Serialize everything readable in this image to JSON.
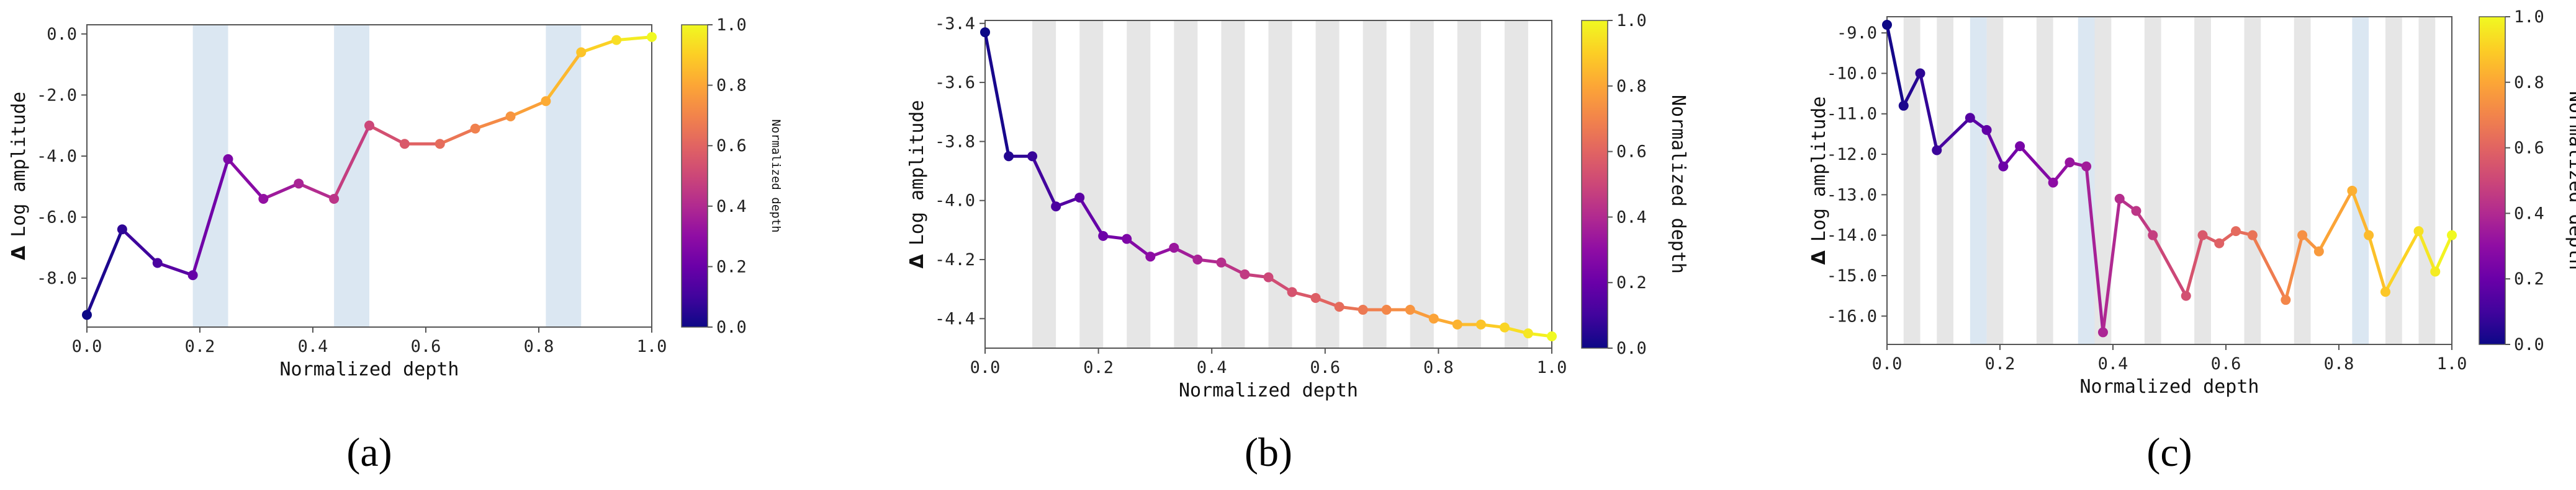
{
  "colors": {
    "blue_band": "#dbe7f2",
    "gray_band": "#e6e6e6",
    "axis": "#555555",
    "text": "#222222"
  },
  "chart_data": [
    {
      "type": "line",
      "panel_label": "(a)",
      "xlabel": "Normalized depth",
      "ylabel_symbol": "Δ",
      "ylabel": "Log amplitude",
      "xlim": [
        0.0,
        1.0
      ],
      "ylim": [
        -9.6,
        0.3
      ],
      "xticks": [
        0.0,
        0.2,
        0.4,
        0.6,
        0.8,
        1.0
      ],
      "xtick_labels": [
        "0.0",
        "0.2",
        "0.4",
        "0.6",
        "0.8",
        "1.0"
      ],
      "yticks": [
        -8.0,
        -6.0,
        -4.0,
        -2.0,
        0.0
      ],
      "ytick_labels": [
        "-8.0",
        "-6.0",
        "-4.0",
        "-2.0",
        "0.0"
      ],
      "bands_blue": [
        [
          0.1875,
          0.25
        ],
        [
          0.4375,
          0.5
        ],
        [
          0.8125,
          0.875
        ]
      ],
      "bands_gray": [],
      "colorbar": {
        "label": "Normalized depth",
        "ticks": [
          "0.0",
          "0.2",
          "0.4",
          "0.6",
          "0.8",
          "1.0"
        ],
        "label_size": "small"
      },
      "x": [
        0.0,
        0.0625,
        0.125,
        0.1875,
        0.25,
        0.3125,
        0.375,
        0.4375,
        0.5,
        0.5625,
        0.625,
        0.6875,
        0.75,
        0.8125,
        0.875,
        0.9375,
        1.0
      ],
      "y": [
        -9.2,
        -6.4,
        -7.5,
        -7.9,
        -4.1,
        -5.4,
        -4.9,
        -5.4,
        -3.0,
        -3.6,
        -3.6,
        -3.1,
        -2.7,
        -2.2,
        -0.6,
        -0.2,
        -0.1
      ]
    },
    {
      "type": "line",
      "panel_label": "(b)",
      "xlabel": "Normalized depth",
      "ylabel_symbol": "Δ",
      "ylabel": "Log amplitude",
      "xlim": [
        0.0,
        1.0
      ],
      "ylim": [
        -4.5,
        -3.39
      ],
      "xticks": [
        0.0,
        0.2,
        0.4,
        0.6,
        0.8,
        1.0
      ],
      "xtick_labels": [
        "0.0",
        "0.2",
        "0.4",
        "0.6",
        "0.8",
        "1.0"
      ],
      "yticks": [
        -4.4,
        -4.2,
        -4.0,
        -3.8,
        -3.6,
        -3.4
      ],
      "ytick_labels": [
        "-4.4",
        "-4.2",
        "-4.0",
        "-3.8",
        "-3.6",
        "-3.4"
      ],
      "bands_blue": [],
      "bands_gray": [
        [
          0.0833,
          0.125
        ],
        [
          0.1667,
          0.2083
        ],
        [
          0.25,
          0.2917
        ],
        [
          0.3333,
          0.375
        ],
        [
          0.4167,
          0.4583
        ],
        [
          0.5,
          0.5417
        ],
        [
          0.5833,
          0.625
        ],
        [
          0.6667,
          0.7083
        ],
        [
          0.75,
          0.7917
        ],
        [
          0.8333,
          0.875
        ],
        [
          0.9167,
          0.9583
        ]
      ],
      "colorbar": {
        "label": "Normalized depth",
        "ticks": [
          "0.0",
          "0.2",
          "0.4",
          "0.6",
          "0.8",
          "1.0"
        ],
        "label_size": "normal"
      },
      "x": [
        0.0,
        0.0417,
        0.0833,
        0.125,
        0.1667,
        0.2083,
        0.25,
        0.2917,
        0.3333,
        0.375,
        0.4167,
        0.4583,
        0.5,
        0.5417,
        0.5833,
        0.625,
        0.6667,
        0.7083,
        0.75,
        0.7917,
        0.8333,
        0.875,
        0.9167,
        0.9583,
        1.0
      ],
      "y": [
        -3.43,
        -3.85,
        -3.85,
        -4.02,
        -3.99,
        -4.12,
        -4.13,
        -4.19,
        -4.16,
        -4.2,
        -4.21,
        -4.25,
        -4.26,
        -4.31,
        -4.33,
        -4.36,
        -4.37,
        -4.37,
        -4.37,
        -4.4,
        -4.42,
        -4.42,
        -4.43,
        -4.45,
        -4.46
      ]
    },
    {
      "type": "line",
      "panel_label": "(c)",
      "xlabel": "Normalized depth",
      "ylabel_symbol": "Δ",
      "ylabel": "Log amplitude",
      "xlim": [
        0.0,
        1.0
      ],
      "ylim": [
        -16.7,
        -8.6
      ],
      "xticks": [
        0.0,
        0.2,
        0.4,
        0.6,
        0.8,
        1.0
      ],
      "xtick_labels": [
        "0.0",
        "0.2",
        "0.4",
        "0.6",
        "0.8",
        "1.0"
      ],
      "yticks": [
        -16.0,
        -15.0,
        -14.0,
        -13.0,
        -12.0,
        -11.0,
        -10.0,
        -9.0
      ],
      "ytick_labels": [
        "-16.0",
        "-15.0",
        "-14.0",
        "-13.0",
        "-12.0",
        "-11.0",
        "-10.0",
        "-9.0"
      ],
      "bands_blue": [
        [
          0.1471,
          0.1765
        ],
        [
          0.3382,
          0.3676
        ],
        [
          0.8235,
          0.8529
        ]
      ],
      "bands_gray": [
        [
          0.0294,
          0.0588
        ],
        [
          0.0882,
          0.1176
        ],
        [
          0.1765,
          0.2059
        ],
        [
          0.2647,
          0.2941
        ],
        [
          0.3676,
          0.3971
        ],
        [
          0.4559,
          0.4853
        ],
        [
          0.5441,
          0.5735
        ],
        [
          0.6324,
          0.6618
        ],
        [
          0.7206,
          0.75
        ],
        [
          0.8824,
          0.9118
        ],
        [
          0.9412,
          0.9706
        ]
      ],
      "colorbar": {
        "label": "Normalized depth",
        "ticks": [
          "0.0",
          "0.2",
          "0.4",
          "0.6",
          "0.8",
          "1.0"
        ],
        "label_size": "normal"
      },
      "x": [
        0.0,
        0.0294,
        0.0588,
        0.0882,
        0.1471,
        0.1765,
        0.2059,
        0.2353,
        0.2941,
        0.3235,
        0.3529,
        0.3824,
        0.4118,
        0.4412,
        0.4706,
        0.5294,
        0.5588,
        0.5882,
        0.6176,
        0.6471,
        0.7059,
        0.7353,
        0.7647,
        0.8235,
        0.8529,
        0.8824,
        0.9412,
        0.9706,
        1.0
      ],
      "y": [
        -8.8,
        -10.8,
        -10.0,
        -11.9,
        -11.1,
        -11.4,
        -12.3,
        -11.8,
        -12.7,
        -12.2,
        -12.3,
        -16.4,
        -13.1,
        -13.4,
        -14.0,
        -15.5,
        -14.0,
        -14.2,
        -13.9,
        -14.0,
        -15.6,
        -14.0,
        -14.4,
        -12.9,
        -14.0,
        -15.4,
        -13.9,
        -14.9,
        -14.0
      ]
    }
  ]
}
